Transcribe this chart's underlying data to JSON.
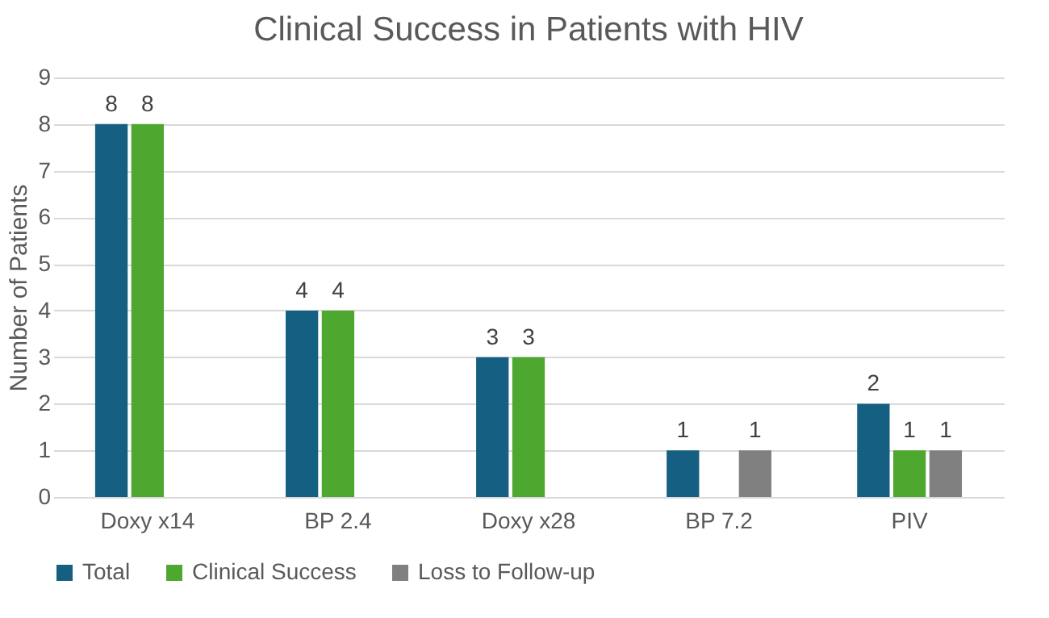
{
  "chart_data": {
    "type": "bar",
    "title": "Clinical Success in Patients with HIV",
    "ylabel": "Number of Patients",
    "categories": [
      "Doxy x14",
      "BP 2.4",
      "Doxy x28",
      "BP 7.2",
      "PIV"
    ],
    "series": [
      {
        "name": "Total",
        "color": "#156082",
        "values": [
          8,
          4,
          3,
          1,
          2
        ]
      },
      {
        "name": "Clinical Success",
        "color": "#4ea72e",
        "values": [
          8,
          4,
          3,
          null,
          1
        ]
      },
      {
        "name": "Loss to Follow-up",
        "color": "#808080",
        "values": [
          null,
          null,
          null,
          1,
          1
        ]
      }
    ],
    "ylim": [
      0,
      9
    ],
    "yticks": [
      0,
      1,
      2,
      3,
      4,
      5,
      6,
      7,
      8,
      9
    ],
    "grid": "y",
    "legend": "bottom",
    "data_labels": true
  }
}
